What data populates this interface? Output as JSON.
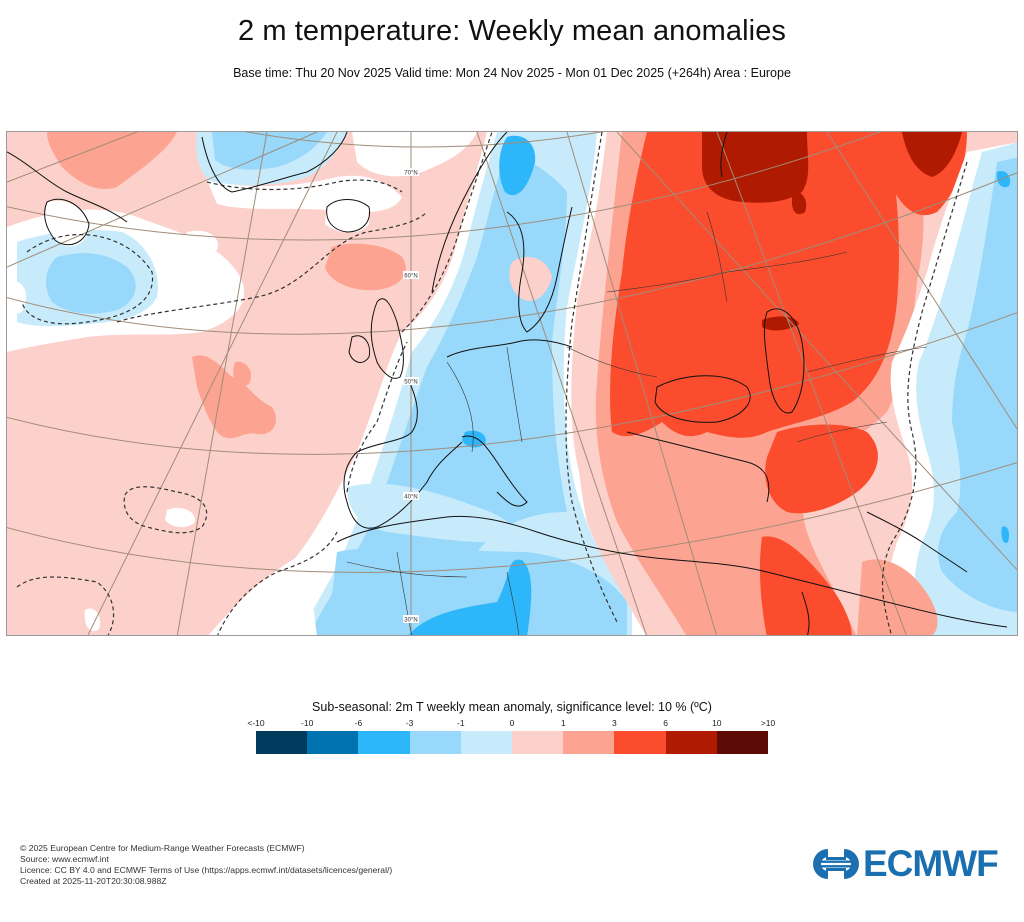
{
  "header": {
    "title": "2 m temperature: Weekly mean anomalies",
    "subtitle": "Base time: Thu 20 Nov 2025 Valid time: Mon 24 Nov 2025 - Mon 01 Dec 2025 (+264h) Area : Europe"
  },
  "map": {
    "area": "Europe",
    "parameter": "2m T weekly mean anomaly",
    "latitude_labels": [
      "70°N",
      "60°N",
      "50°N",
      "40°N",
      "30°N"
    ],
    "significance_contour": "dashed",
    "colors": {
      "graticule": "#a08c78",
      "coastline": "#111111",
      "border": "#333333"
    }
  },
  "legend": {
    "title": "Sub-seasonal: 2m T weekly mean anomaly, significance level: 10 % (ºC)",
    "tick_labels": [
      "<-10",
      "-10",
      "-6",
      "-3",
      "-1",
      "0",
      "1",
      "3",
      "6",
      "10",
      ">10"
    ],
    "bins": [
      {
        "range": "<-10 to -10",
        "color": "#003a5c"
      },
      {
        "range": "-10 to -6",
        "color": "#0072b0"
      },
      {
        "range": "-6 to -3",
        "color": "#2eb6fb"
      },
      {
        "range": "-3 to -1",
        "color": "#98d8fb"
      },
      {
        "range": "-1 to 0",
        "color": "#c8ebfc"
      },
      {
        "range": "0 to 1",
        "color": "#fdd1cb"
      },
      {
        "range": "1 to 3",
        "color": "#fca491"
      },
      {
        "range": "3 to 6",
        "color": "#fb4d2e"
      },
      {
        "range": "6 to 10",
        "color": "#b01a01"
      },
      {
        "range": "10 to >10",
        "color": "#5c0c04"
      }
    ]
  },
  "footer": {
    "lines": [
      "© 2025 European Centre for Medium-Range Weather Forecasts (ECMWF)",
      "Source: www.ecmwf.int",
      "Licence: CC BY 4.0 and ECMWF Terms of Use (https://apps.ecmwf.int/datasets/licences/general/)",
      "Created at 2025-11-20T20:30:08.988Z"
    ]
  },
  "logo": {
    "text": "ECMWF",
    "color": "#1a6fb0"
  }
}
